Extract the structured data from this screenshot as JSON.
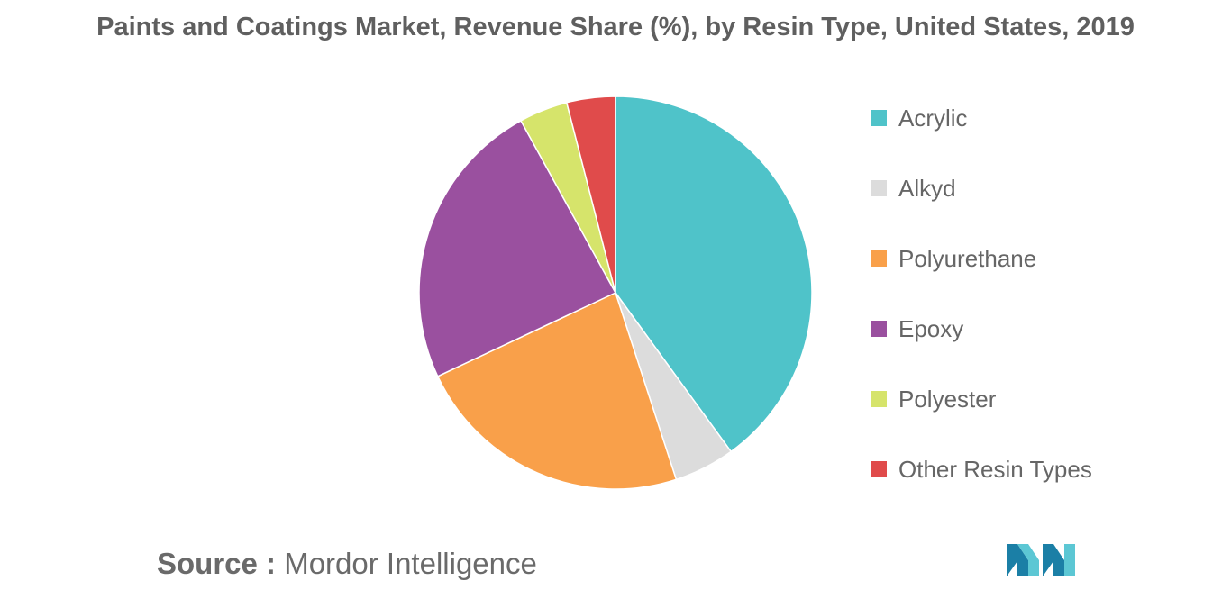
{
  "chart_data": {
    "type": "pie",
    "title": "Paints and Coatings Market, Revenue Share (%), by Resin Type, United States, 2019",
    "categories": [
      "Acrylic",
      "Alkyd",
      "Polyurethane",
      "Epoxy",
      "Polyester",
      "Other Resin Types"
    ],
    "values": [
      40,
      5,
      23,
      24,
      4,
      4
    ],
    "colors": [
      "#4fc3c9",
      "#dcdcdc",
      "#f9a04a",
      "#9a509f",
      "#d6e46b",
      "#e04b4b"
    ],
    "legend_position": "right",
    "start_angle": "top, clockwise"
  },
  "legend": {
    "items": [
      {
        "label": "Acrylic",
        "color": "#4fc3c9"
      },
      {
        "label": "Alkyd",
        "color": "#dcdcdc"
      },
      {
        "label": "Polyurethane",
        "color": "#f9a04a"
      },
      {
        "label": "Epoxy",
        "color": "#9a509f"
      },
      {
        "label": "Polyester",
        "color": "#d6e46b"
      },
      {
        "label": "Other Resin Types",
        "color": "#e04b4b"
      }
    ]
  },
  "source": {
    "label": "Source :",
    "value": "Mordor Intelligence"
  },
  "logo": {
    "icon": "mordor-intelligence-logo-icon",
    "colors": [
      "#1b7fa6",
      "#5cc7d4"
    ]
  }
}
